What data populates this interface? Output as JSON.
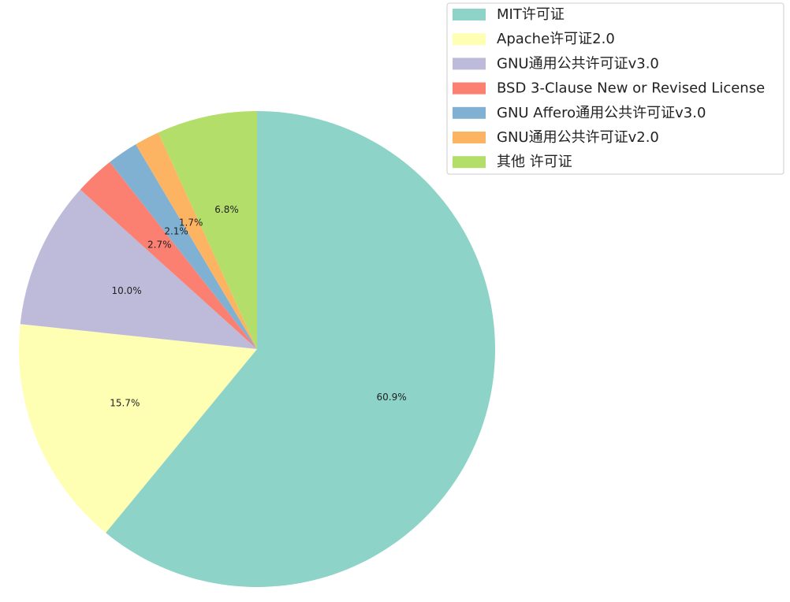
{
  "chart_data": {
    "type": "pie",
    "title": "",
    "start_angle_deg": 90,
    "direction": "clockwise",
    "legend_position": "top-right",
    "slices": [
      {
        "label": "MIT许可证",
        "value": 60.9,
        "pct_label": "60.9%",
        "color": "#8dd3c7"
      },
      {
        "label": "Apache许可证2.0",
        "value": 15.7,
        "pct_label": "15.7%",
        "color": "#ffffb3"
      },
      {
        "label": "GNU通用公共许可证v3.0",
        "value": 10.0,
        "pct_label": "10.0%",
        "color": "#bebada"
      },
      {
        "label": "BSD 3-Clause New or Revised License",
        "value": 2.7,
        "pct_label": "2.7%",
        "color": "#fb8072"
      },
      {
        "label": "GNU Affero通用公共许可证v3.0",
        "value": 2.1,
        "pct_label": "2.1%",
        "color": "#80b1d3"
      },
      {
        "label": "GNU通用公共许可证v2.0",
        "value": 1.7,
        "pct_label": "1.7%",
        "color": "#fdb462"
      },
      {
        "label": "其他 许可证",
        "value": 6.8,
        "pct_label": "6.8%",
        "color": "#b3de69"
      }
    ]
  }
}
